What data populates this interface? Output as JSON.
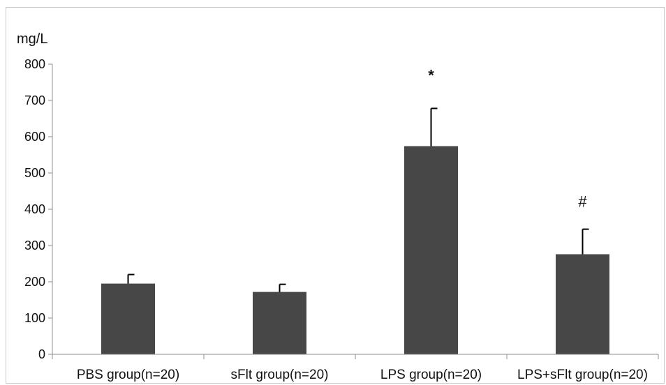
{
  "chart_data": {
    "type": "bar",
    "ylabel": "mg/L",
    "ylim": [
      0,
      800
    ],
    "yticks": [
      0,
      100,
      200,
      300,
      400,
      500,
      600,
      700,
      800
    ],
    "grid": false,
    "categories": [
      "PBS group(n=20)",
      "sFlt group(n=20)",
      "LPS group(n=20)",
      "LPS+sFlt group(n=20)"
    ],
    "values": [
      195,
      172,
      574,
      276
    ],
    "error_upper": [
      220,
      193,
      678,
      345
    ],
    "annotations": [
      "",
      "",
      "*",
      "#"
    ],
    "bar_color": "#474747",
    "error_color": "#000000"
  }
}
